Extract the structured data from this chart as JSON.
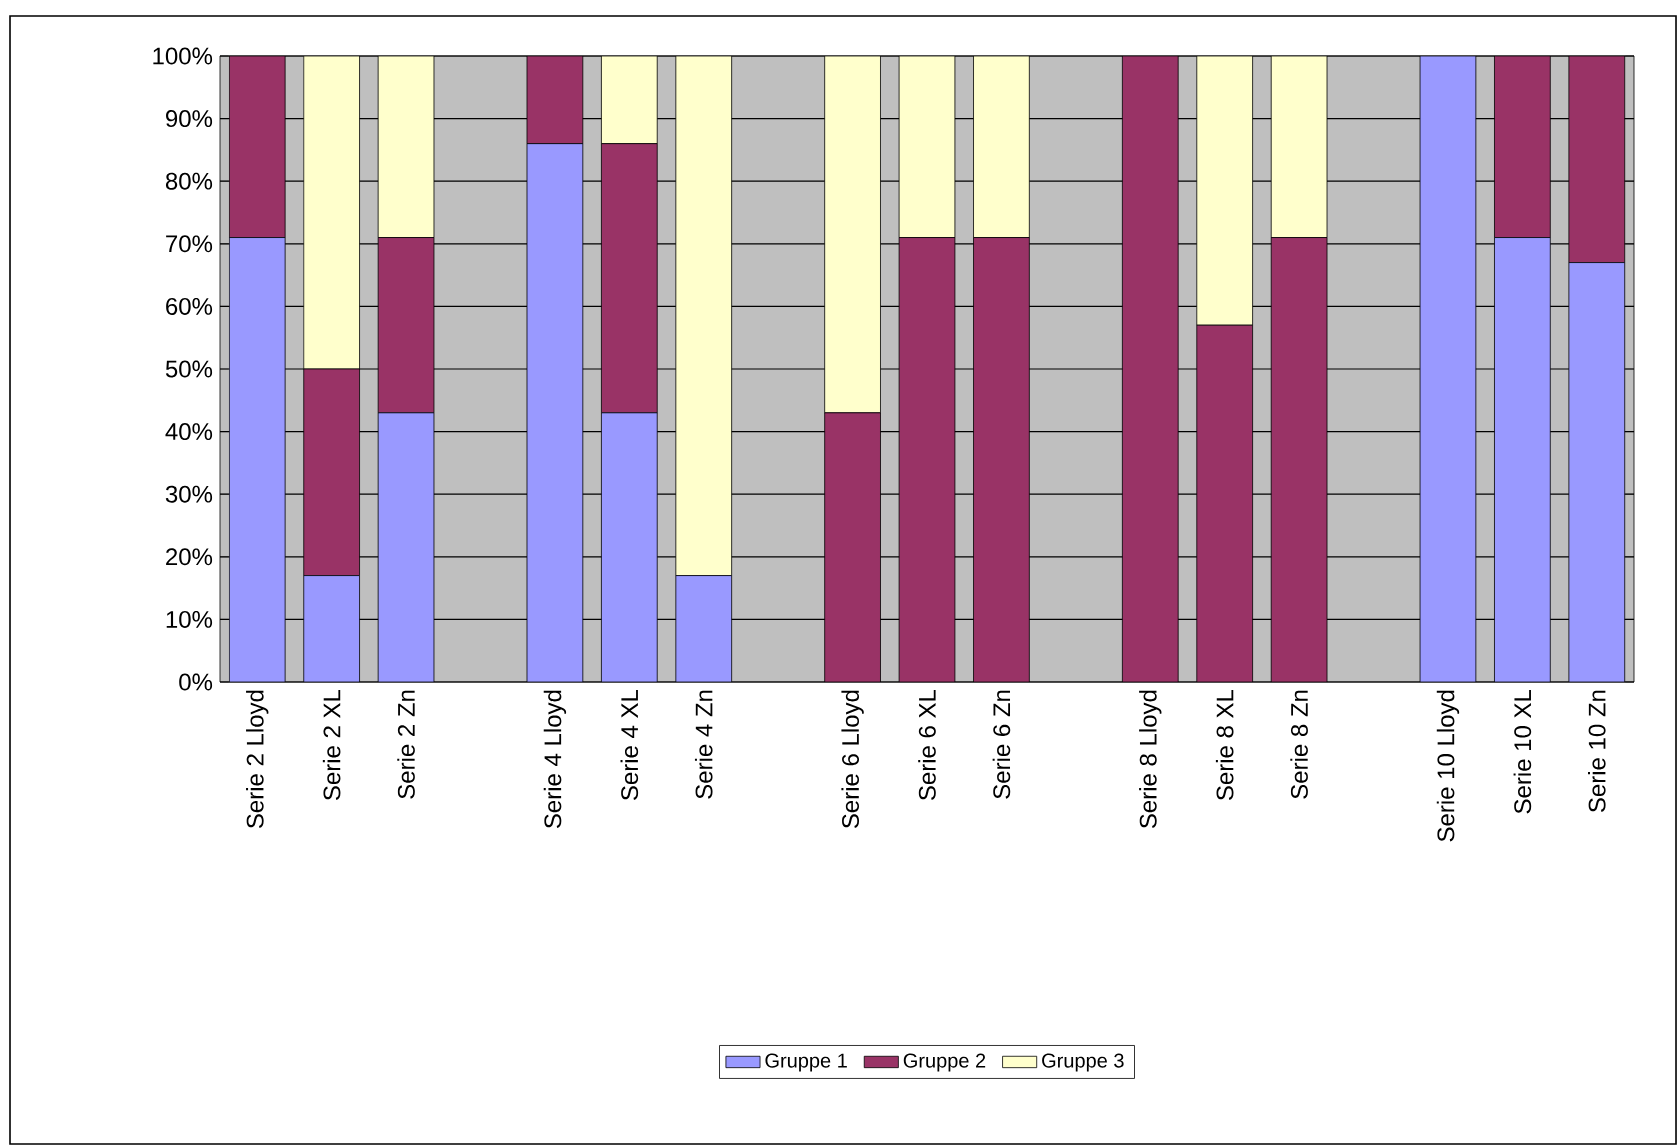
{
  "chart_data": {
    "type": "bar",
    "stacked": true,
    "categories": [
      "Serie 2 Lloyd",
      "Serie 2 XL",
      "Serie 2 Zn",
      null,
      "Serie 4 Lloyd",
      "Serie 4 XL",
      "Serie 4 Zn",
      null,
      "Serie 6 Lloyd",
      "Serie 6 XL",
      "Serie 6 Zn",
      null,
      "Serie 8 Lloyd",
      "Serie 8 XL",
      "Serie 8 Zn",
      null,
      "Serie 10 Lloyd",
      "Serie 10 XL",
      "Serie 10 Zn"
    ],
    "series": [
      {
        "name": "Gruppe 1",
        "color": "#9999ff",
        "values": [
          71,
          17,
          43,
          null,
          86,
          43,
          17,
          null,
          0,
          0,
          0,
          null,
          0,
          0,
          0,
          null,
          100,
          71,
          67
        ]
      },
      {
        "name": "Gruppe 2",
        "color": "#993366",
        "values": [
          29,
          33,
          28,
          null,
          14,
          43,
          0,
          null,
          43,
          71,
          71,
          null,
          100,
          57,
          71,
          null,
          0,
          29,
          33
        ]
      },
      {
        "name": "Gruppe 3",
        "color": "#ffffcc",
        "values": [
          0,
          50,
          29,
          null,
          0,
          14,
          83,
          null,
          57,
          29,
          29,
          null,
          0,
          43,
          29,
          null,
          0,
          0,
          0
        ]
      }
    ],
    "ylim": [
      0,
      100
    ],
    "yticks": [
      {
        "value": 0,
        "label": "0%"
      },
      {
        "value": 10,
        "label": "10%"
      },
      {
        "value": 20,
        "label": "20%"
      },
      {
        "value": 30,
        "label": "30%"
      },
      {
        "value": 40,
        "label": "40%"
      },
      {
        "value": 50,
        "label": "50%"
      },
      {
        "value": 60,
        "label": "60%"
      },
      {
        "value": 70,
        "label": "70%"
      },
      {
        "value": 80,
        "label": "80%"
      },
      {
        "value": 90,
        "label": "90%"
      },
      {
        "value": 100,
        "label": "100%"
      }
    ],
    "grid": "y",
    "legend": "bottom"
  }
}
